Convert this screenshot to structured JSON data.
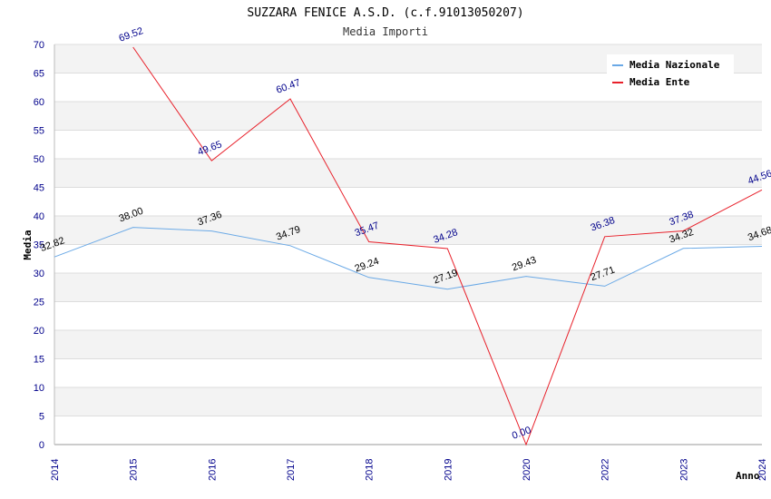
{
  "chart_data": {
    "type": "line",
    "title": "SUZZARA FENICE A.S.D. (c.f.91013050207)",
    "subtitle": "Media Importi",
    "xlabel": "Anno",
    "ylabel": "Media",
    "categories": [
      "2014",
      "2015",
      "2016",
      "2017",
      "2018",
      "2019",
      "2020",
      "2022",
      "2023",
      "2024"
    ],
    "ylim": [
      0,
      70
    ],
    "yticks": [
      0,
      5,
      10,
      15,
      20,
      25,
      30,
      35,
      40,
      45,
      50,
      55,
      60,
      65,
      70
    ],
    "grid": true,
    "legend_position": "top-right",
    "series": [
      {
        "name": "Media Nazionale",
        "color": "#6aa9e6",
        "values": [
          32.82,
          38.0,
          37.36,
          34.79,
          29.24,
          27.19,
          29.43,
          27.71,
          34.32,
          34.68
        ],
        "labels": [
          "32.82",
          "38.00",
          "37.36",
          "34.79",
          "29.24",
          "27.19",
          "29.43",
          "27.71",
          "34.32",
          "34.68"
        ]
      },
      {
        "name": "Media Ente",
        "color": "#e8202a",
        "values": [
          null,
          69.52,
          49.65,
          60.47,
          35.47,
          34.28,
          0.0,
          36.38,
          37.38,
          44.56
        ],
        "labels": [
          null,
          "69.52",
          "49.65",
          "60.47",
          "35.47",
          "34.28",
          "0.00",
          "36.38",
          "37.38",
          "44.56"
        ]
      }
    ]
  }
}
